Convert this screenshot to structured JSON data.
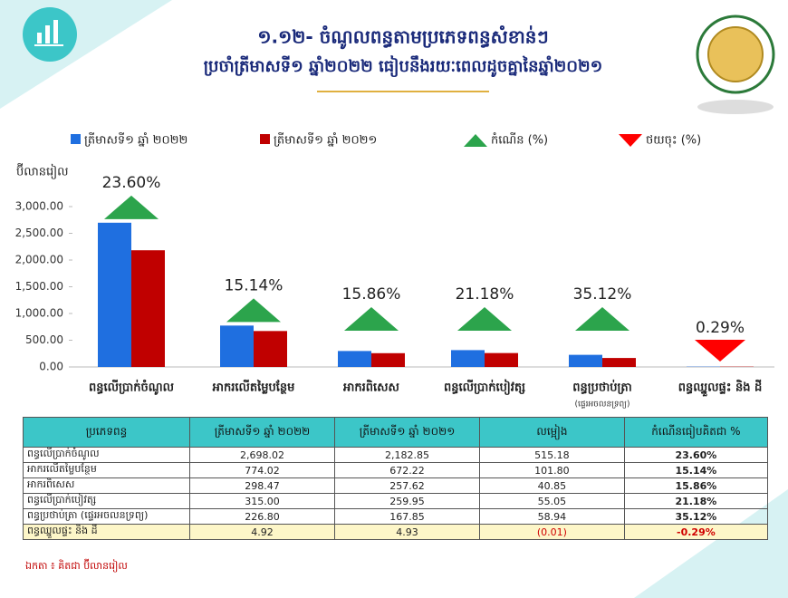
{
  "chart_data": {
    "type": "bar",
    "title": "១.១២- ចំណូលពន្ធតាមប្រភេទពន្ធសំខាន់ៗ",
    "subtitle": "ប្រចាំត្រីមាសទី១  ឆ្នាំ២០២២ ធៀបនឹងរយៈពេលដូចគ្នានៃឆ្នាំ២០២១",
    "y_label": "ប៊ីលានរៀល",
    "categories": [
      "ពន្ធលើប្រាក់ចំណូល",
      "អាករលើតម្លៃបន្ថែម",
      "អាករពិសេស",
      "ពន្ធលើប្រាក់បៀវត្ស",
      "ពន្ធប្រថាប់ត្រា",
      "ពន្ធឈ្នួលផ្ទះ និង ដី"
    ],
    "category_notes": [
      null,
      null,
      null,
      null,
      "(ផ្ទេរអចលនទ្រព្យ)",
      null
    ],
    "series": [
      {
        "name": "ត្រីមាសទី១ ឆ្នាំ ២០២២",
        "color": "#1f6fe0",
        "values": [
          2698.02,
          774.02,
          298.47,
          315.0,
          226.8,
          4.92
        ]
      },
      {
        "name": "ត្រីមាសទី១ ឆ្នាំ ២០២១",
        "color": "#c00000",
        "values": [
          2182.85,
          672.22,
          257.62,
          259.95,
          167.85,
          4.93
        ]
      }
    ],
    "growth": {
      "values": [
        23.6,
        15.14,
        15.86,
        21.18,
        35.12,
        -0.29
      ],
      "value_labels": [
        "23.60%",
        "15.14%",
        "15.86%",
        "21.18%",
        "35.12%",
        "0.29%"
      ]
    },
    "markers": {
      "up": {
        "name": "កំណើន (%)",
        "color": "#2ca44c"
      },
      "down": {
        "name": "ថយចុះ (%)",
        "color": "#ff0000"
      }
    },
    "ylim": [
      0,
      3000
    ],
    "yticks": [
      {
        "value": 0,
        "label": "0.00"
      },
      {
        "value": 500,
        "label": "500.00"
      },
      {
        "value": 1000,
        "label": "1,000.00"
      },
      {
        "value": 1500,
        "label": "1,500.00"
      },
      {
        "value": 2000,
        "label": "2,000.00"
      },
      {
        "value": 2500,
        "label": "2,500.00"
      },
      {
        "value": 3000,
        "label": "3,000.00"
      }
    ]
  },
  "table": {
    "header": [
      "ប្រភេទពន្ធ",
      "ត្រីមាសទី១ ឆ្នាំ ២០២២",
      "ត្រីមាសទី១ ឆ្នាំ ២០២១",
      "លម្អៀង",
      "កំណើនធៀបគិតជា %"
    ],
    "rows": [
      [
        "ពន្ធលើប្រាក់ចំណូល",
        "2,698.02",
        "2,182.85",
        "515.18",
        "23.60%"
      ],
      [
        "អាករលើតម្លៃបន្ថែម",
        "774.02",
        "672.22",
        "101.80",
        "15.14%"
      ],
      [
        "អាករពិសេស",
        "298.47",
        "257.62",
        "40.85",
        "15.86%"
      ],
      [
        "ពន្ធលើប្រាក់បៀវត្ស",
        "315.00",
        "259.95",
        "55.05",
        "21.18%"
      ],
      [
        "ពន្ធប្រថាប់ត្រា (ផ្ទេរអចលនទ្រព្យ)",
        "226.80",
        "167.85",
        "58.94",
        "35.12%"
      ],
      [
        "ពន្ធឈ្នួលផ្ទះ និង ដី",
        "4.92",
        "4.93",
        "(0.01)",
        "-0.29%"
      ]
    ],
    "note": "ឯកតា ៖ គិតជា ប៊ីលានរៀល"
  }
}
